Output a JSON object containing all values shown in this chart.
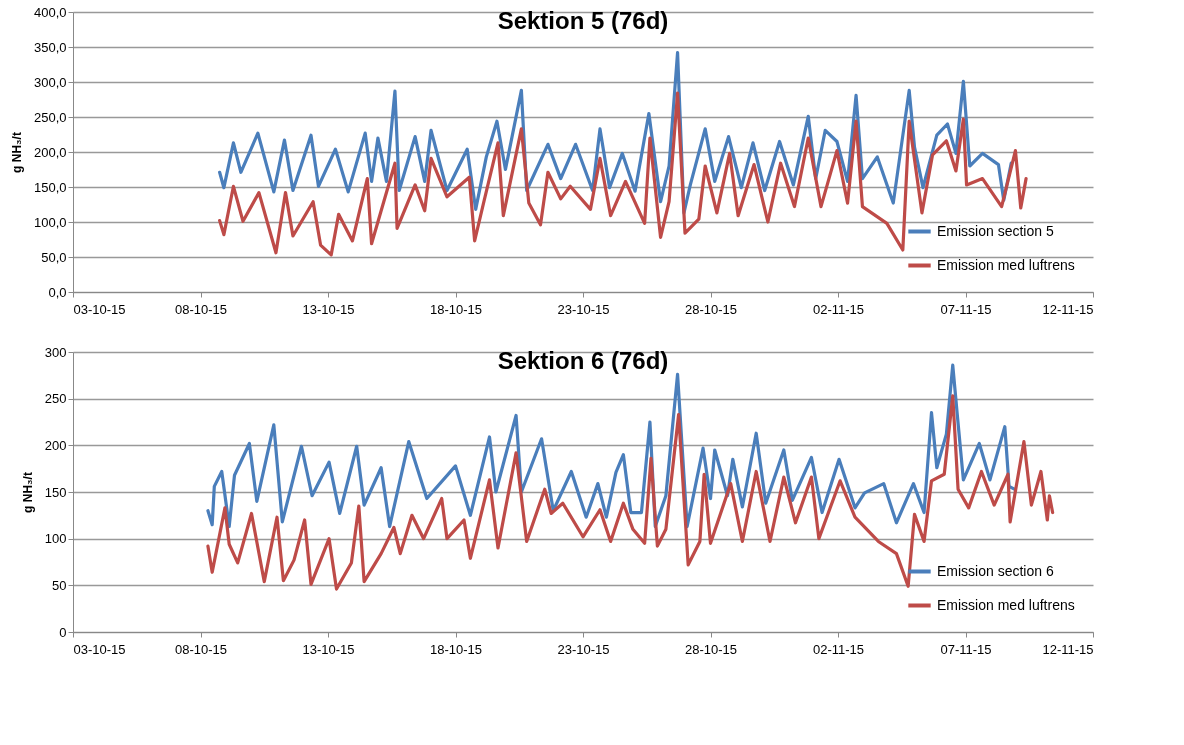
{
  "chart_data": [
    {
      "type": "line",
      "title": "Sektion 5 (76d)",
      "ylabel": "g NH₃/t",
      "grid": "y",
      "legend": "bottom right",
      "xlim": [
        "--10-03",
        "--11-12"
      ],
      "xticks": [
        {
          "value": "--10-03",
          "label": "03-10-15"
        },
        {
          "value": "--10-08",
          "label": "08-10-15"
        },
        {
          "value": "--10-13",
          "label": "13-10-15"
        },
        {
          "value": "--10-18",
          "label": "18-10-15"
        },
        {
          "value": "--10-23",
          "label": "23-10-15"
        },
        {
          "value": "--10-28",
          "label": "28-10-15"
        },
        {
          "value": "--11-02",
          "label": "02-11-15"
        },
        {
          "value": "--11-07",
          "label": "07-11-15"
        },
        {
          "value": "--11-12",
          "label": "12-11-15"
        }
      ],
      "ylim": [
        0,
        400
      ],
      "yticks": [
        {
          "value": 0,
          "label": "0,0"
        },
        {
          "value": 50,
          "label": "50,0"
        },
        {
          "value": 100,
          "label": "100,0"
        },
        {
          "value": 150,
          "label": "150,0"
        },
        {
          "value": 200,
          "label": "200,0"
        },
        {
          "value": 250,
          "label": "250,0"
        },
        {
          "value": 300,
          "label": "300,0"
        },
        {
          "value": 350,
          "label": "350,0"
        },
        {
          "value": 400,
          "label": "400,0"
        }
      ],
      "series": [
        {
          "name": "Emission section 5",
          "color": "#4a7ebb",
          "x": [
            "--10-08T18:00",
            "--10-08T22:00",
            "--10-09T07:00",
            "--10-09T14:00",
            "--10-10T06:00",
            "--10-10T21:00",
            "--10-11T07:00",
            "--10-11T15:00",
            "--10-12T08:00",
            "--10-12T15:00",
            "--10-13T07:00",
            "--10-13T19:00",
            "--10-14T11:00",
            "--10-14T17:00",
            "--10-14T23:00",
            "--10-15T07:00",
            "--10-15T15:00",
            "--10-15T19:00",
            "--10-16T10:00",
            "--10-16T19:00",
            "--10-17T01:00",
            "--10-17T16:00",
            "--10-18T11:00",
            "--10-18T19:00",
            "--10-19T05:00",
            "--10-19T15:00",
            "--10-19T23:00",
            "--10-20T14:00",
            "--10-20T19:00",
            "--10-21T15:00",
            "--10-22T03:00",
            "--10-22T17:00",
            "--10-23T09:00",
            "--10-23T16:00",
            "--10-24T01:00",
            "--10-24T13:00",
            "--10-25T01:00",
            "--10-25T14:00",
            "--10-26T01:00",
            "--10-26T09:00",
            "--10-26T17:00",
            "--10-26T23:00",
            "--10-27T05:00",
            "--10-27T19:00",
            "--10-28T04:00",
            "--10-28T17:00",
            "--10-29T05:00",
            "--10-29T16:00",
            "--10-30T03:00",
            "--10-30T17:00",
            "--10-31T06:00",
            "--10-31T20:00",
            "--11-01T03:00",
            "--11-01T12:00",
            "--11-01T23:00",
            "--11-02T09:00",
            "--11-02T17:00",
            "--11-02T23:00",
            "--11-03T13:00",
            "--11-04T04:00",
            "--11-04T19:00",
            "--11-05T00:00",
            "--11-05T08:00",
            "--11-05T21:00",
            "--11-06T07:00",
            "--11-06T15:00",
            "--11-06T22:00",
            "--11-07T04:00",
            "--11-07T16:00",
            "--11-08T07:00",
            "--11-08T12:00",
            "--11-08T19:00"
          ],
          "values": [
            171,
            149,
            213,
            171,
            227,
            143,
            217,
            145,
            224,
            151,
            204,
            143,
            227,
            158,
            220,
            158,
            287,
            145,
            222,
            158,
            231,
            145,
            204,
            118,
            193,
            244,
            175,
            288,
            145,
            211,
            162,
            211,
            145,
            233,
            149,
            198,
            144,
            255,
            129,
            180,
            342,
            113,
            153,
            233,
            158,
            222,
            149,
            213,
            145,
            215,
            153,
            251,
            162,
            231,
            215,
            158,
            281,
            162,
            193,
            127,
            288,
            207,
            149,
            224,
            240,
            198,
            301,
            180,
            198,
            182,
            131,
            184
          ]
        },
        {
          "name": "Emission med luftrens",
          "color": "#be4b48",
          "x": [
            "--10-08T18:00",
            "--10-08T22:00",
            "--10-09T07:00",
            "--10-09T16:00",
            "--10-10T07:00",
            "--10-10T23:00",
            "--10-11T08:00",
            "--10-11T15:00",
            "--10-12T10:00",
            "--10-12T17:00",
            "--10-13T03:00",
            "--10-13T10:00",
            "--10-13T23:00",
            "--10-14T13:00",
            "--10-14T17:00",
            "--10-15T15:00",
            "--10-15T17:00",
            "--10-16T10:00",
            "--10-16T19:00",
            "--10-17T01:00",
            "--10-17T16:00",
            "--10-18T13:00",
            "--10-18T18:00",
            "--10-19T03:00",
            "--10-19T16:00",
            "--10-19T21:00",
            "--10-20T14:00",
            "--10-20T21:00",
            "--10-21T08:00",
            "--10-21T15:00",
            "--10-22T03:00",
            "--10-22T12:00",
            "--10-23T07:00",
            "--10-23T16:00",
            "--10-24T02:00",
            "--10-24T16:00",
            "--10-25T10:00",
            "--10-25T15:00",
            "--10-26T01:00",
            "--10-26T09:00",
            "--10-26T17:00",
            "--10-27T00:00",
            "--10-27T13:00",
            "--10-27T19:00",
            "--10-28T06:00",
            "--10-28T18:00",
            "--10-29T02:00",
            "--10-29T17:00",
            "--10-30T06:00",
            "--10-30T18:00",
            "--10-31T07:00",
            "--10-31T20:00",
            "--11-01T08:00",
            "--11-01T23:00",
            "--11-02T09:00",
            "--11-02T17:00",
            "--11-02T23:00",
            "--11-03T22:00",
            "--11-04T13:00",
            "--11-04T19:00",
            "--11-05T07:00",
            "--11-05T17:00",
            "--11-06T06:00",
            "--11-06T15:00",
            "--11-06T22:00",
            "--11-07T01:00",
            "--11-07T16:00",
            "--11-08T10:00",
            "--11-08T23:00",
            "--11-09T04:00",
            "--11-09T09:00"
          ],
          "values": [
            102,
            82,
            151,
            101,
            142,
            56,
            142,
            80,
            129,
            67,
            53,
            111,
            73,
            162,
            69,
            184,
            91,
            153,
            116,
            191,
            136,
            164,
            73,
            131,
            213,
            109,
            233,
            127,
            96,
            171,
            133,
            151,
            118,
            191,
            109,
            158,
            98,
            220,
            78,
            129,
            284,
            84,
            104,
            180,
            113,
            198,
            109,
            182,
            100,
            184,
            122,
            220,
            122,
            202,
            127,
            244,
            122,
            98,
            60,
            244,
            113,
            196,
            216,
            173,
            247,
            153,
            162,
            122,
            202,
            120,
            162
          ]
        }
      ]
    },
    {
      "type": "line",
      "title": "Sektion 6 (76d)",
      "ylabel": "g NH₃/t",
      "grid": "y",
      "legend": "bottom right",
      "xlim": [
        "--10-03",
        "--11-12"
      ],
      "xticks": [
        {
          "value": "--10-03",
          "label": "03-10-15"
        },
        {
          "value": "--10-08",
          "label": "08-10-15"
        },
        {
          "value": "--10-13",
          "label": "13-10-15"
        },
        {
          "value": "--10-18",
          "label": "18-10-15"
        },
        {
          "value": "--10-23",
          "label": "23-10-15"
        },
        {
          "value": "--10-28",
          "label": "28-10-15"
        },
        {
          "value": "--11-02",
          "label": "02-11-15"
        },
        {
          "value": "--11-07",
          "label": "07-11-15"
        },
        {
          "value": "--11-12",
          "label": "12-11-15"
        }
      ],
      "ylim": [
        0,
        300
      ],
      "yticks": [
        0,
        50,
        100,
        150,
        200,
        250,
        300
      ],
      "series": [
        {
          "name": "Emission section 6",
          "color": "#4a7ebb",
          "x": [
            "--10-08T07:00",
            "--10-08T11:00",
            "--10-08T13:00",
            "--10-08T20:00",
            "--10-09T03:00",
            "--10-09T08:00",
            "--10-09T22:00",
            "--10-10T05:00",
            "--10-10T21:00",
            "--10-11T05:00",
            "--10-11T23:00",
            "--10-12T09:00",
            "--10-13T01:00",
            "--10-13T11:00",
            "--10-14T03:00",
            "--10-14T10:00",
            "--10-15T02:00",
            "--10-15T10:00",
            "--10-16T04:00",
            "--10-16T21:00",
            "--10-18T00:00",
            "--10-18T14:00",
            "--10-19T08:00",
            "--10-19T14:00",
            "--10-20T09:00",
            "--10-20T14:00",
            "--10-21T09:00",
            "--10-21T20:00",
            "--10-22T13:00",
            "--10-23T03:00",
            "--10-23T14:00",
            "--10-23T22:00",
            "--10-24T07:00",
            "--10-24T14:00",
            "--10-24T21:00",
            "--10-25T07:00",
            "--10-25T15:00",
            "--10-25T20:00",
            "--10-26T06:00",
            "--10-26T17:00",
            "--10-27T02:00",
            "--10-27T17:00",
            "--10-28T00:00",
            "--10-28T04:00",
            "--10-28T16:00",
            "--10-28T21:00",
            "--10-29T06:00",
            "--10-29T19:00",
            "--10-30T04:00",
            "--10-30T21:00",
            "--10-31T05:00",
            "--10-31T23:00",
            "--11-01T09:00",
            "--11-02T01:00",
            "--11-02T16:00",
            "--11-03T01:00",
            "--11-03T19:00",
            "--11-04T07:00",
            "--11-04T23:00",
            "--11-05T09:00",
            "--11-05T16:00",
            "--11-05T21:00",
            "--11-06T06:00",
            "--11-06T12:00",
            "--11-06T16:00",
            "--11-06T22:00",
            "--11-07T13:00",
            "--11-07T23:00",
            "--11-08T13:00",
            "--11-08T17:00",
            "--11-08T22:00"
          ],
          "values": [
            130,
            115,
            156,
            172,
            113,
            168,
            202,
            140,
            222,
            118,
            199,
            146,
            182,
            127,
            199,
            136,
            176,
            113,
            204,
            143,
            178,
            125,
            209,
            150,
            232,
            150,
            207,
            130,
            172,
            123,
            159,
            123,
            171,
            190,
            128,
            128,
            225,
            113,
            146,
            276,
            113,
            197,
            143,
            195,
            146,
            185,
            134,
            213,
            138,
            195,
            141,
            187,
            128,
            185,
            133,
            149,
            159,
            117,
            159,
            128,
            235,
            176,
            212,
            286,
            236,
            163,
            202,
            163,
            220,
            156,
            153
          ]
        },
        {
          "name": "Emission med luftrens",
          "color": "#be4b48",
          "x": [
            "--10-08T07:00",
            "--10-08T11:00",
            "--10-08T23:00",
            "--10-09T03:00",
            "--10-09T11:00",
            "--10-10T00:00",
            "--10-10T12:00",
            "--10-11T00:00",
            "--10-11T06:00",
            "--10-11T16:00",
            "--10-12T02:00",
            "--10-12T08:00",
            "--10-13T01:00",
            "--10-13T08:00",
            "--10-13T22:00",
            "--10-14T05:00",
            "--10-14T10:00",
            "--10-15T02:00",
            "--10-15T14:00",
            "--10-15T20:00",
            "--10-16T07:00",
            "--10-16T18:00",
            "--10-17T11:00",
            "--10-17T16:00",
            "--10-18T08:00",
            "--10-18T14:00",
            "--10-19T08:00",
            "--10-19T16:00",
            "--10-20T09:00",
            "--10-20T19:00",
            "--10-21T12:00",
            "--10-21T18:00",
            "--10-22T05:00",
            "--10-23T00:00",
            "--10-23T16:00",
            "--10-24T02:00",
            "--10-24T14:00",
            "--10-24T23:00",
            "--10-25T10:00",
            "--10-25T16:00",
            "--10-25T22:00",
            "--10-26T06:00",
            "--10-26T18:00",
            "--10-27T03:00",
            "--10-27T14:00",
            "--10-27T18:00",
            "--10-28T00:00",
            "--10-28T19:00",
            "--10-29T06:00",
            "--10-29T19:00",
            "--10-30T08:00",
            "--10-30T21:00",
            "--10-31T08:00",
            "--10-31T23:00",
            "--11-01T06:00",
            "--11-02T02:00",
            "--11-02T16:00",
            "--11-03T14:00",
            "--11-04T07:00",
            "--11-04T18:00",
            "--11-05T00:00",
            "--11-05T09:00",
            "--11-05T16:00",
            "--11-06T04:00",
            "--11-06T12:00",
            "--11-06T17:00",
            "--11-07T03:00",
            "--11-07T15:00",
            "--11-08T03:00",
            "--11-08T16:00",
            "--11-08T18:00",
            "--11-09T07:00",
            "--11-09T14:00",
            "--11-09T23:00",
            "--11-10T05:00",
            "--11-10T07:00",
            "--11-10T10:00"
          ],
          "values": [
            92,
            64,
            133,
            94,
            74,
            127,
            54,
            123,
            55,
            77,
            120,
            51,
            100,
            46,
            74,
            135,
            54,
            84,
            112,
            84,
            125,
            100,
            143,
            100,
            120,
            79,
            163,
            90,
            192,
            97,
            153,
            127,
            138,
            102,
            131,
            97,
            138,
            110,
            95,
            186,
            92,
            110,
            233,
            72,
            97,
            169,
            95,
            159,
            97,
            172,
            97,
            166,
            117,
            166,
            100,
            162,
            123,
            97,
            84,
            49,
            126,
            97,
            162,
            169,
            253,
            153,
            133,
            172,
            136,
            169,
            118,
            204,
            136,
            172,
            120,
            146,
            128
          ]
        }
      ]
    }
  ]
}
